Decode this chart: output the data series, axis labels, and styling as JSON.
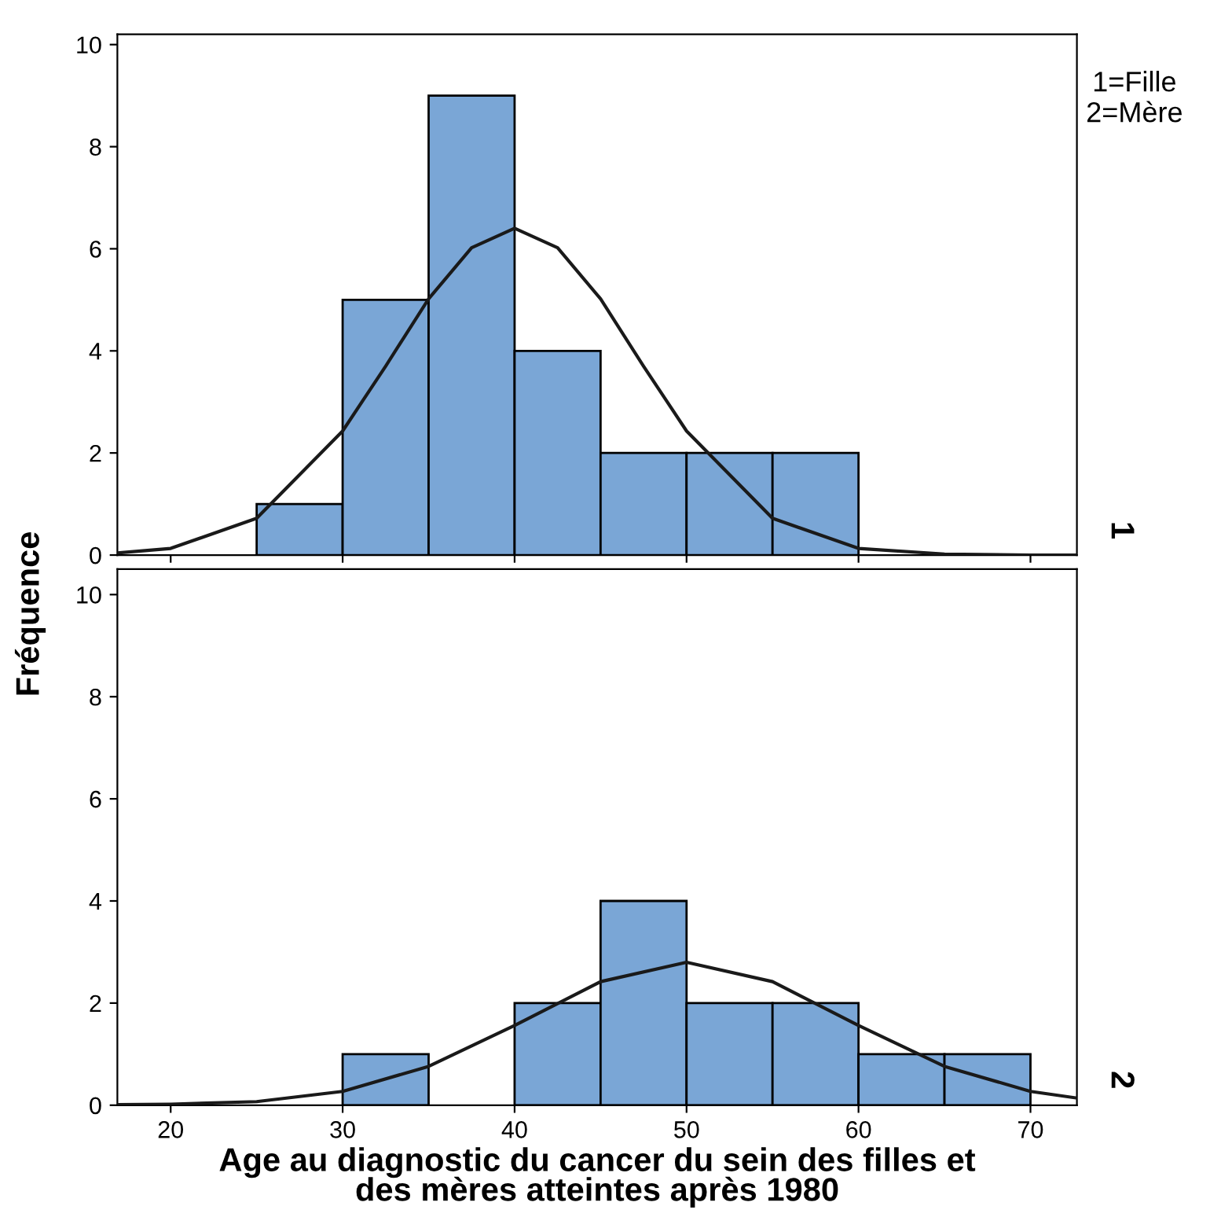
{
  "chart_data": [
    {
      "type": "histogram",
      "ylabel": "Fréquence",
      "annotations": [
        "1=Fille\n2=Mère",
        "1"
      ],
      "xlim": [
        16.9,
        72.7
      ],
      "ylim": [
        0,
        10.2
      ],
      "xticks": [
        20,
        30,
        40,
        50,
        60,
        70
      ],
      "yticks": [
        0,
        2,
        4,
        6,
        8,
        10
      ],
      "tick_labels": "y",
      "grid": false,
      "legend": false,
      "series": [
        {
          "type": "histogram",
          "bins": [
            25,
            30,
            35,
            40,
            45,
            50,
            55,
            60
          ],
          "values": [
            1,
            5,
            9,
            4,
            2,
            2,
            2
          ],
          "color": "#7aa6d6"
        },
        {
          "type": "line",
          "x": [
            16.9,
            20,
            25,
            30,
            32.5,
            35,
            37.5,
            40,
            42.5,
            45,
            47.5,
            50,
            55,
            60,
            65,
            70,
            72.7
          ],
          "values": [
            0.04,
            0.13,
            0.72,
            2.43,
            3.7,
            5.02,
            6.02,
            6.4,
            6.02,
            5.02,
            3.7,
            2.43,
            0.72,
            0.13,
            0.02,
            0,
            0
          ],
          "color": "#1a1a1a"
        }
      ]
    },
    {
      "type": "histogram",
      "xlabel": "Age au diagnostic du cancer du sein des filles et\ndes mères atteintes après 1980",
      "annotations": [
        "2"
      ],
      "xlim": [
        16.9,
        72.7
      ],
      "ylim": [
        0,
        10.5
      ],
      "xticks": [
        20,
        30,
        40,
        50,
        60,
        70
      ],
      "yticks": [
        0,
        2,
        4,
        6,
        8,
        10
      ],
      "grid": false,
      "legend": false,
      "series": [
        {
          "type": "histogram",
          "bins": [
            30,
            35,
            40,
            45,
            50,
            55,
            60,
            65,
            70
          ],
          "values": [
            1,
            0,
            2,
            4,
            2,
            2,
            1,
            1
          ],
          "color": "#7aa6d6"
        },
        {
          "type": "line",
          "x": [
            16.9,
            20,
            25,
            30,
            35,
            40,
            45,
            50,
            55,
            60,
            65,
            70,
            72.7
          ],
          "values": [
            0.01,
            0.02,
            0.07,
            0.27,
            0.76,
            1.56,
            2.42,
            2.8,
            2.42,
            1.56,
            0.76,
            0.27,
            0.14
          ],
          "color": "#1a1a1a"
        }
      ]
    }
  ]
}
